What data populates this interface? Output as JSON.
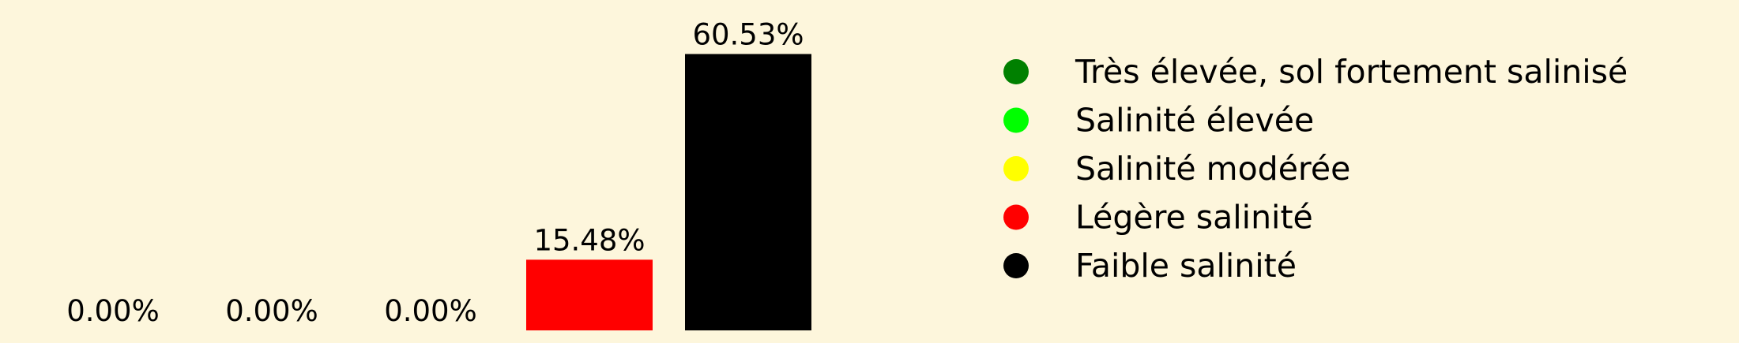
{
  "chart_data": {
    "type": "bar",
    "title": "",
    "xlabel": "",
    "ylabel": "",
    "categories": [
      "Très élevée, sol fortement salinisé",
      "Salinité élevée",
      "Salinité modérée",
      "Légère salinité",
      "Faible salinité"
    ],
    "values": [
      0.0,
      0.0,
      0.0,
      15.48,
      60.53
    ],
    "value_labels": [
      "0.00%",
      "0.00%",
      "0.00%",
      "15.48%",
      "60.53%"
    ],
    "colors": [
      "#008000",
      "#00ff00",
      "#ffff00",
      "#ff0000",
      "#000000"
    ],
    "ylim": [
      0,
      62
    ],
    "grid": false,
    "legend_position": "right"
  }
}
